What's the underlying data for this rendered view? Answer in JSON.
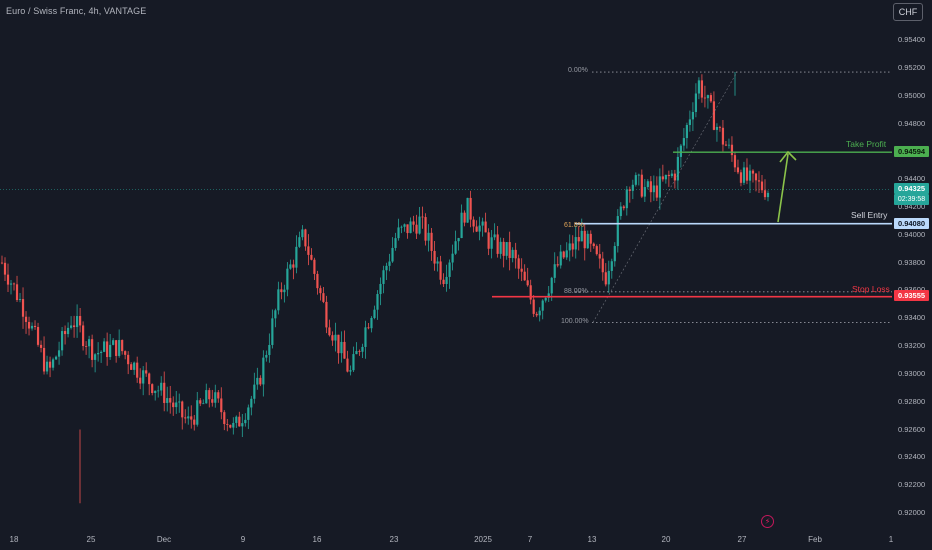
{
  "header": {
    "title": "Euro / Swiss Franc, 4h, VANTAGE",
    "currency_button": "CHF"
  },
  "price_axis": [
    "0.95400",
    "0.95200",
    "0.95000",
    "0.94800",
    "0.94400",
    "0.94200",
    "0.94000",
    "0.93800",
    "0.93600",
    "0.93400",
    "0.93200",
    "0.93000",
    "0.92800",
    "0.92600",
    "0.92400",
    "0.92200",
    "0.92000"
  ],
  "time_axis": [
    "18",
    "25",
    "Dec",
    "9",
    "16",
    "23",
    "2025",
    "7",
    "13",
    "20",
    "27",
    "Feb",
    "1"
  ],
  "tags": {
    "take_profit_price": "0.94594",
    "current_price": "0.94325",
    "countdown": "02:39:58",
    "sell_entry_price": "0.94080",
    "stop_loss_price": "0.93555"
  },
  "annotations": {
    "take_profit": "Take Profit",
    "sell_entry": "Sell Entry",
    "stop_loss": "Stop Loss"
  },
  "fib": {
    "level_0": "0.00%",
    "level_618": "61.8%",
    "level_88": "88.00%",
    "level_100": "100.00%"
  },
  "colors": {
    "background": "#161a25",
    "up": "#26a69a",
    "down": "#ef5350",
    "take_profit": "#4caf50",
    "stop_loss": "#f23645",
    "sell_entry": "#bbd9fb",
    "arrow": "#8bc34a"
  },
  "chart_data": {
    "type": "candlestick",
    "symbol": "EURCHF",
    "timeframe": "4h",
    "y_range": [
      0.919,
      0.9555
    ],
    "key_levels": {
      "take_profit": 0.94594,
      "current": 0.94325,
      "sell_entry": 0.9408,
      "stop_loss": 0.93555,
      "fib_0": 0.9517,
      "fib_100": 0.9337
    },
    "price_path": [
      {
        "date": "18 Nov",
        "price": 0.938
      },
      {
        "date": "20 Nov",
        "price": 0.9345
      },
      {
        "date": "22 Nov",
        "price": 0.93
      },
      {
        "date": "25 Nov",
        "price": 0.934
      },
      {
        "date": "27 Nov",
        "price": 0.9315
      },
      {
        "date": "29 Nov",
        "price": 0.932
      },
      {
        "date": "2 Dec",
        "price": 0.93
      },
      {
        "date": "4 Dec",
        "price": 0.9285
      },
      {
        "date": "6 Dec",
        "price": 0.9265
      },
      {
        "date": "9 Dec",
        "price": 0.9285
      },
      {
        "date": "11 Dec",
        "price": 0.926
      },
      {
        "date": "13 Dec",
        "price": 0.929
      },
      {
        "date": "16 Dec",
        "price": 0.936
      },
      {
        "date": "18 Dec",
        "price": 0.94
      },
      {
        "date": "20 Dec",
        "price": 0.934
      },
      {
        "date": "23 Dec",
        "price": 0.93
      },
      {
        "date": "26 Dec",
        "price": 0.935
      },
      {
        "date": "30 Dec",
        "price": 0.94
      },
      {
        "date": "2 Jan",
        "price": 0.941
      },
      {
        "date": "4 Jan",
        "price": 0.937
      },
      {
        "date": "7 Jan",
        "price": 0.942
      },
      {
        "date": "9 Jan",
        "price": 0.9395
      },
      {
        "date": "11 Jan",
        "price": 0.9385
      },
      {
        "date": "13 Jan",
        "price": 0.9345
      },
      {
        "date": "15 Jan",
        "price": 0.938
      },
      {
        "date": "17 Jan",
        "price": 0.94
      },
      {
        "date": "19 Jan",
        "price": 0.937
      },
      {
        "date": "20 Jan",
        "price": 0.944
      },
      {
        "date": "22 Jan",
        "price": 0.943
      },
      {
        "date": "24 Jan",
        "price": 0.9445
      },
      {
        "date": "26 Jan",
        "price": 0.951
      },
      {
        "date": "27 Jan",
        "price": 0.947
      },
      {
        "date": "28 Jan",
        "price": 0.944
      },
      {
        "date": "29 Jan",
        "price": 0.94325
      }
    ]
  }
}
